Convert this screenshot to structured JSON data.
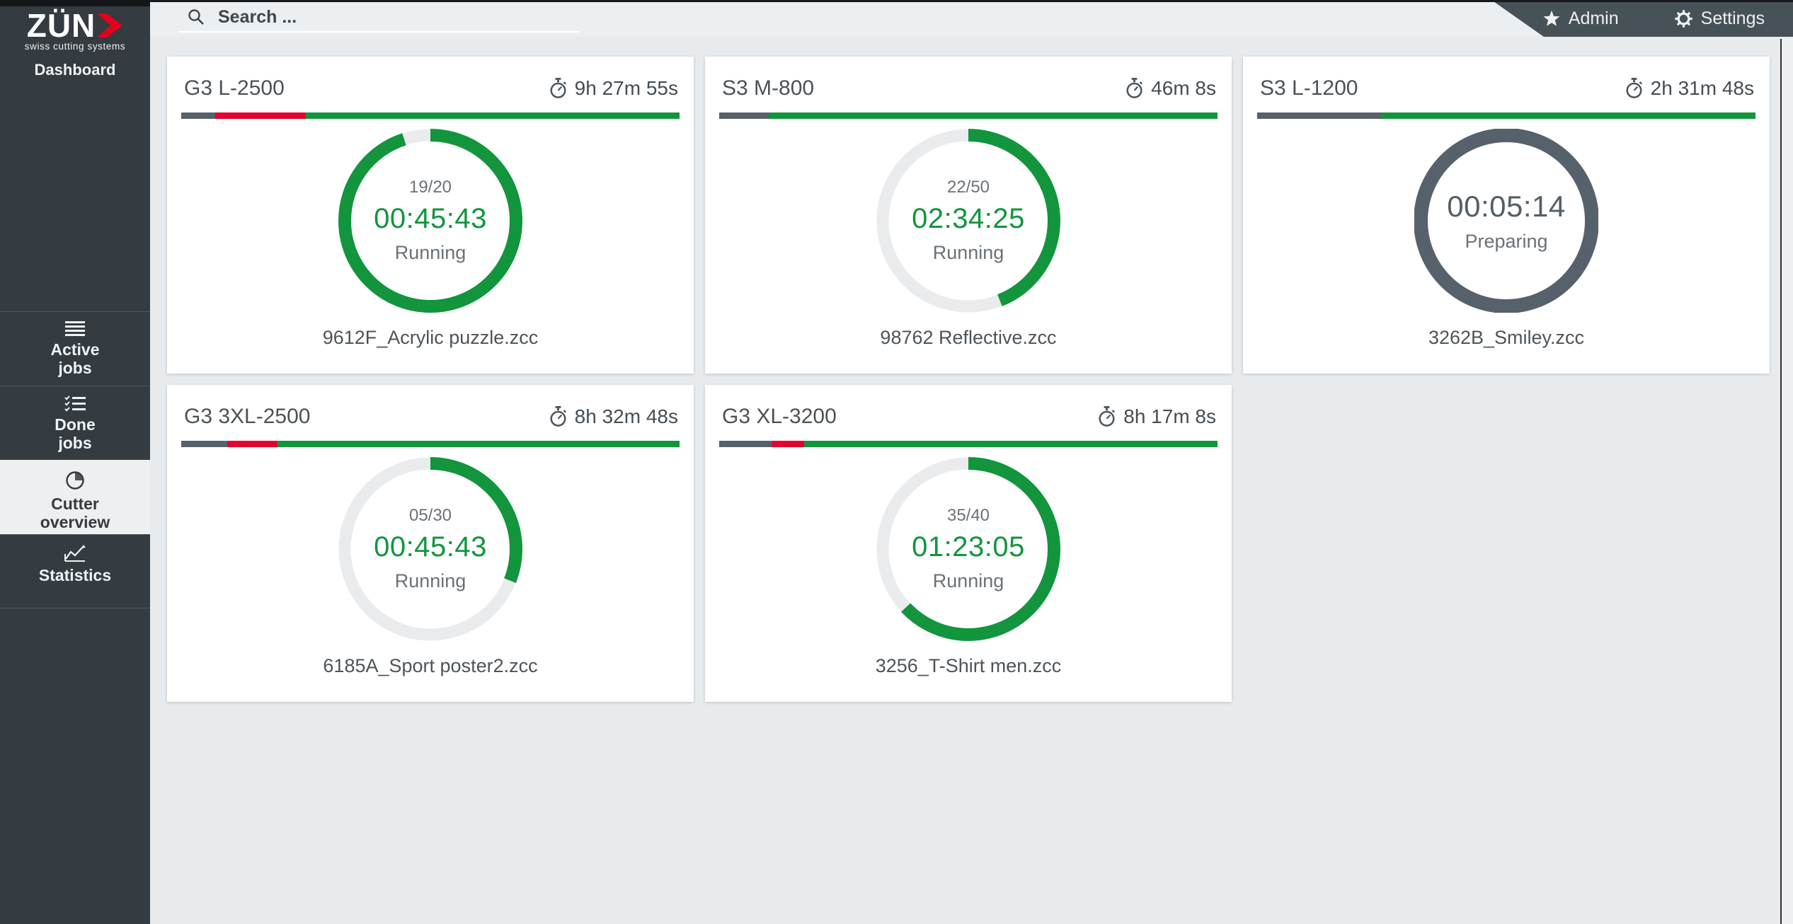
{
  "brand": {
    "logo_text": "ZÜN",
    "logo_sub": "swiss cutting systems",
    "app_label": "Dashboard"
  },
  "topbar": {
    "search_placeholder": "Search ...",
    "admin_label": "Admin",
    "settings_label": "Settings"
  },
  "sidebar": {
    "items": [
      {
        "id": "active-jobs",
        "line1": "Active",
        "line2": "jobs",
        "active": false
      },
      {
        "id": "done-jobs",
        "line1": "Done",
        "line2": "jobs",
        "active": false
      },
      {
        "id": "cutter-overview",
        "line1": "Cutter",
        "line2": "overview",
        "active": true
      },
      {
        "id": "statistics",
        "line1": "Statistics",
        "line2": "",
        "active": false
      }
    ]
  },
  "colors": {
    "brand_red": "#e2001a",
    "progress_green": "#12953c",
    "progress_red": "#e2032e",
    "progress_gray": "#57616a",
    "preparing_slate": "#57616b",
    "sidebar_bg": "#343b41",
    "account_bar_bg": "#475158",
    "page_bg": "#e8ebed",
    "card_bg": "#ffffff"
  },
  "cards": [
    {
      "machine": "G3 L-2500",
      "time_left": "9h 27m 55s",
      "bar": {
        "gray": 6.8,
        "red": 18.2,
        "green": 75.0
      },
      "ring": {
        "percent": 95,
        "state": "running"
      },
      "count": "19/20",
      "elapsed": "00:45:43",
      "status": "Running",
      "file": "9612F_Acrylic puzzle.zcc"
    },
    {
      "machine": "S3 M-800",
      "time_left": "46m 8s",
      "bar": {
        "gray": 9.9,
        "red": 0,
        "green": 90.1
      },
      "ring": {
        "percent": 44,
        "state": "running"
      },
      "count": "22/50",
      "elapsed": "02:34:25",
      "status": "Running",
      "file": "98762 Reflective.zcc"
    },
    {
      "machine": "S3 L-1200",
      "time_left": "2h 31m 48s",
      "bar": {
        "gray": 25.0,
        "red": 0,
        "green": 75.0
      },
      "ring": {
        "percent": 100,
        "state": "preparing"
      },
      "count": "",
      "elapsed": "00:05:14",
      "status": "Preparing",
      "file": "3262B_Smiley.zcc"
    },
    {
      "machine": "G3 3XL-2500",
      "time_left": "8h 32m 48s",
      "bar": {
        "gray": 9.2,
        "red": 10.1,
        "green": 80.7
      },
      "ring": {
        "percent": 31,
        "state": "running"
      },
      "count": "05/30",
      "elapsed": "00:45:43",
      "status": "Running",
      "file": "6185A_Sport poster2.zcc"
    },
    {
      "machine": "G3 XL-3200",
      "time_left": "8h 17m 8s",
      "bar": {
        "gray": 10.5,
        "red": 6.5,
        "green": 83.0
      },
      "ring": {
        "percent": 63,
        "state": "running"
      },
      "count": "35/40",
      "elapsed": "01:23:05",
      "status": "Running",
      "file": "3256_T-Shirt men.zcc"
    }
  ]
}
